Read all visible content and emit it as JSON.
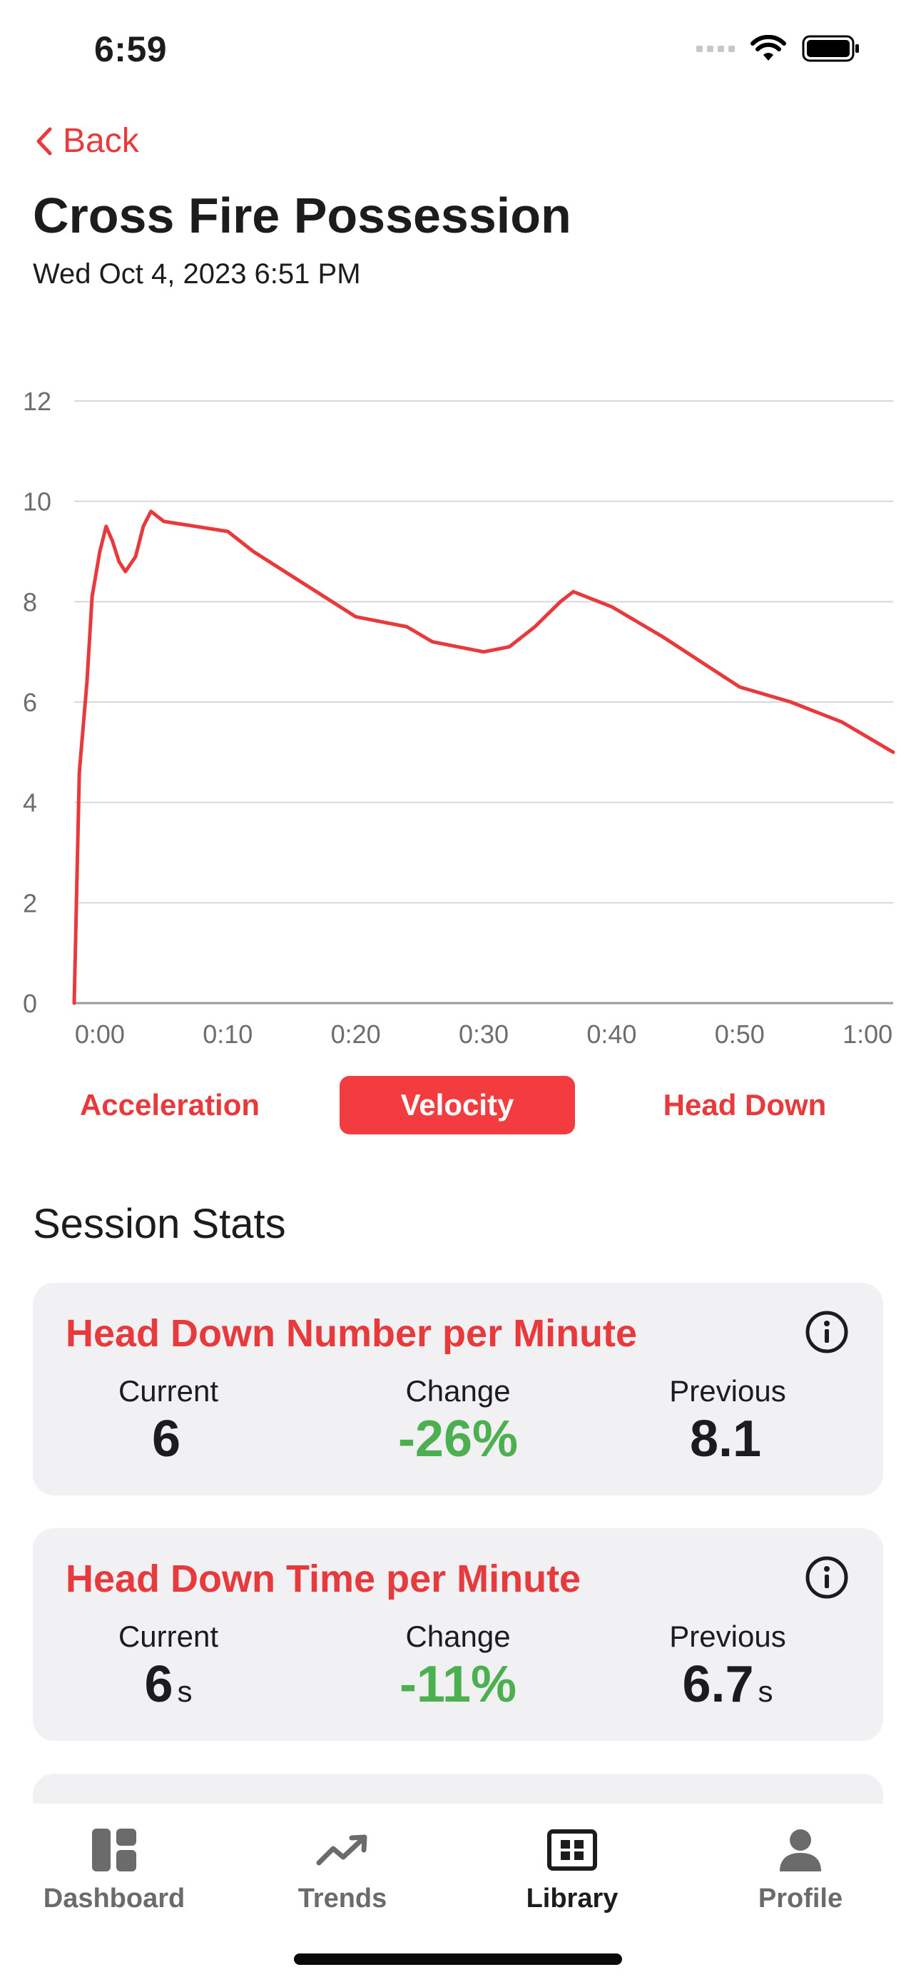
{
  "status_bar": {
    "time": "6:59"
  },
  "header": {
    "back_label": "Back",
    "title": "Cross Fire Possession",
    "date": "Wed Oct 4, 2023 6:51 PM"
  },
  "chart_data": {
    "type": "line",
    "ylim": [
      0,
      12
    ],
    "yticks": [
      "0",
      "2",
      "4",
      "6",
      "8",
      "10",
      "12"
    ],
    "xlim": [
      -2,
      62
    ],
    "xticks": [
      {
        "label": "0:00",
        "value": 0
      },
      {
        "label": "0:10",
        "value": 10
      },
      {
        "label": "0:20",
        "value": 20
      },
      {
        "label": "0:30",
        "value": 30
      },
      {
        "label": "0:40",
        "value": 40
      },
      {
        "label": "0:50",
        "value": 50
      },
      {
        "label": "1:00",
        "value": 60
      }
    ],
    "grid": true,
    "color": "#e63a3d",
    "series": [
      {
        "x": [
          -2,
          -1.6,
          -1,
          -0.6,
          0,
          0.5,
          1,
          1.5,
          2,
          2.8,
          3.4,
          4,
          5,
          10,
          12,
          20,
          24,
          26,
          30,
          32,
          34,
          36,
          37,
          38,
          40,
          44,
          50,
          54,
          58,
          62
        ],
        "y": [
          0,
          4.6,
          6.4,
          8.1,
          9.0,
          9.5,
          9.2,
          8.8,
          8.6,
          8.9,
          9.5,
          9.8,
          9.6,
          9.4,
          9.0,
          7.7,
          7.5,
          7.2,
          7.0,
          7.1,
          7.5,
          8.0,
          8.2,
          8.1,
          7.9,
          7.3,
          6.3,
          6.0,
          5.6,
          5.0
        ]
      }
    ]
  },
  "metric_tabs": [
    {
      "label": "Acceleration",
      "active": false
    },
    {
      "label": "Velocity",
      "active": true
    },
    {
      "label": "Head Down",
      "active": false
    }
  ],
  "session_stats": {
    "title": "Session Stats",
    "cards": [
      {
        "title": "Head Down Number per Minute",
        "current_label": "Current",
        "current": "6",
        "current_unit": "",
        "change_label": "Change",
        "change": "-26%",
        "previous_label": "Previous",
        "previous": "8.1",
        "previous_unit": ""
      },
      {
        "title": "Head Down Time per Minute",
        "current_label": "Current",
        "current": "6",
        "current_unit": "s",
        "change_label": "Change",
        "change": "-11%",
        "previous_label": "Previous",
        "previous": "6.7",
        "previous_unit": "s"
      }
    ]
  },
  "tabbar": {
    "items": [
      {
        "label": "Dashboard",
        "icon": "dashboard-icon",
        "active": false
      },
      {
        "label": "Trends",
        "icon": "trends-icon",
        "active": false
      },
      {
        "label": "Library",
        "icon": "library-icon",
        "active": true
      },
      {
        "label": "Profile",
        "icon": "profile-icon",
        "active": false
      }
    ]
  }
}
